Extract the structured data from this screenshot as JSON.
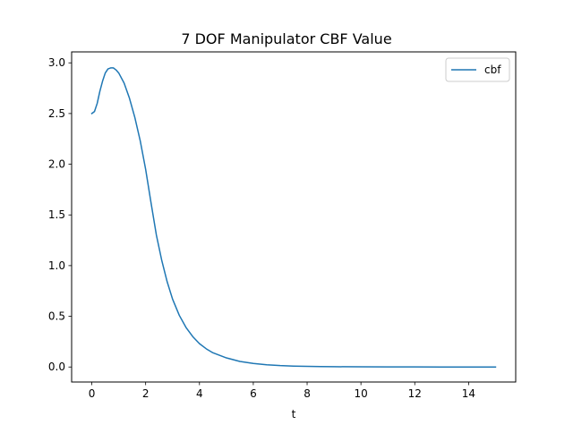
{
  "chart_data": {
    "type": "line",
    "title": "7 DOF Manipulator CBF Value",
    "xlabel": "t",
    "ylabel": "",
    "xlim": [
      -0.75,
      15.75
    ],
    "ylim": [
      -0.148,
      3.108
    ],
    "grid": false,
    "legend_position": "top-right",
    "x_ticks": [
      0,
      2,
      4,
      6,
      8,
      10,
      12,
      14
    ],
    "x_tick_labels": [
      "0",
      "2",
      "4",
      "6",
      "8",
      "10",
      "12",
      "14"
    ],
    "y_ticks": [
      0.0,
      0.5,
      1.0,
      1.5,
      2.0,
      2.5,
      3.0
    ],
    "y_tick_labels": [
      "0.0",
      "0.5",
      "1.0",
      "1.5",
      "2.0",
      "2.5",
      "3.0"
    ],
    "series": [
      {
        "name": "cbf",
        "color": "#1f77b4",
        "x": [
          0,
          0.1,
          0.2,
          0.3,
          0.4,
          0.5,
          0.6,
          0.7,
          0.8,
          0.9,
          1.0,
          1.2,
          1.4,
          1.6,
          1.8,
          2.0,
          2.2,
          2.4,
          2.6,
          2.8,
          3.0,
          3.25,
          3.5,
          3.75,
          4.0,
          4.25,
          4.5,
          5.0,
          5.5,
          6.0,
          6.5,
          7.0,
          7.5,
          8.0,
          8.5,
          9.0,
          10.0,
          11.0,
          12.0,
          13.0,
          14.0,
          15.0
        ],
        "y": [
          2.5,
          2.52,
          2.6,
          2.72,
          2.82,
          2.9,
          2.94,
          2.95,
          2.95,
          2.93,
          2.9,
          2.8,
          2.65,
          2.46,
          2.23,
          1.95,
          1.62,
          1.3,
          1.05,
          0.84,
          0.67,
          0.51,
          0.39,
          0.3,
          0.23,
          0.18,
          0.14,
          0.09,
          0.055,
          0.035,
          0.022,
          0.014,
          0.009,
          0.006,
          0.004,
          0.003,
          0.0015,
          0.0008,
          0.0004,
          0.0002,
          0.0001,
          0.0
        ]
      }
    ]
  }
}
